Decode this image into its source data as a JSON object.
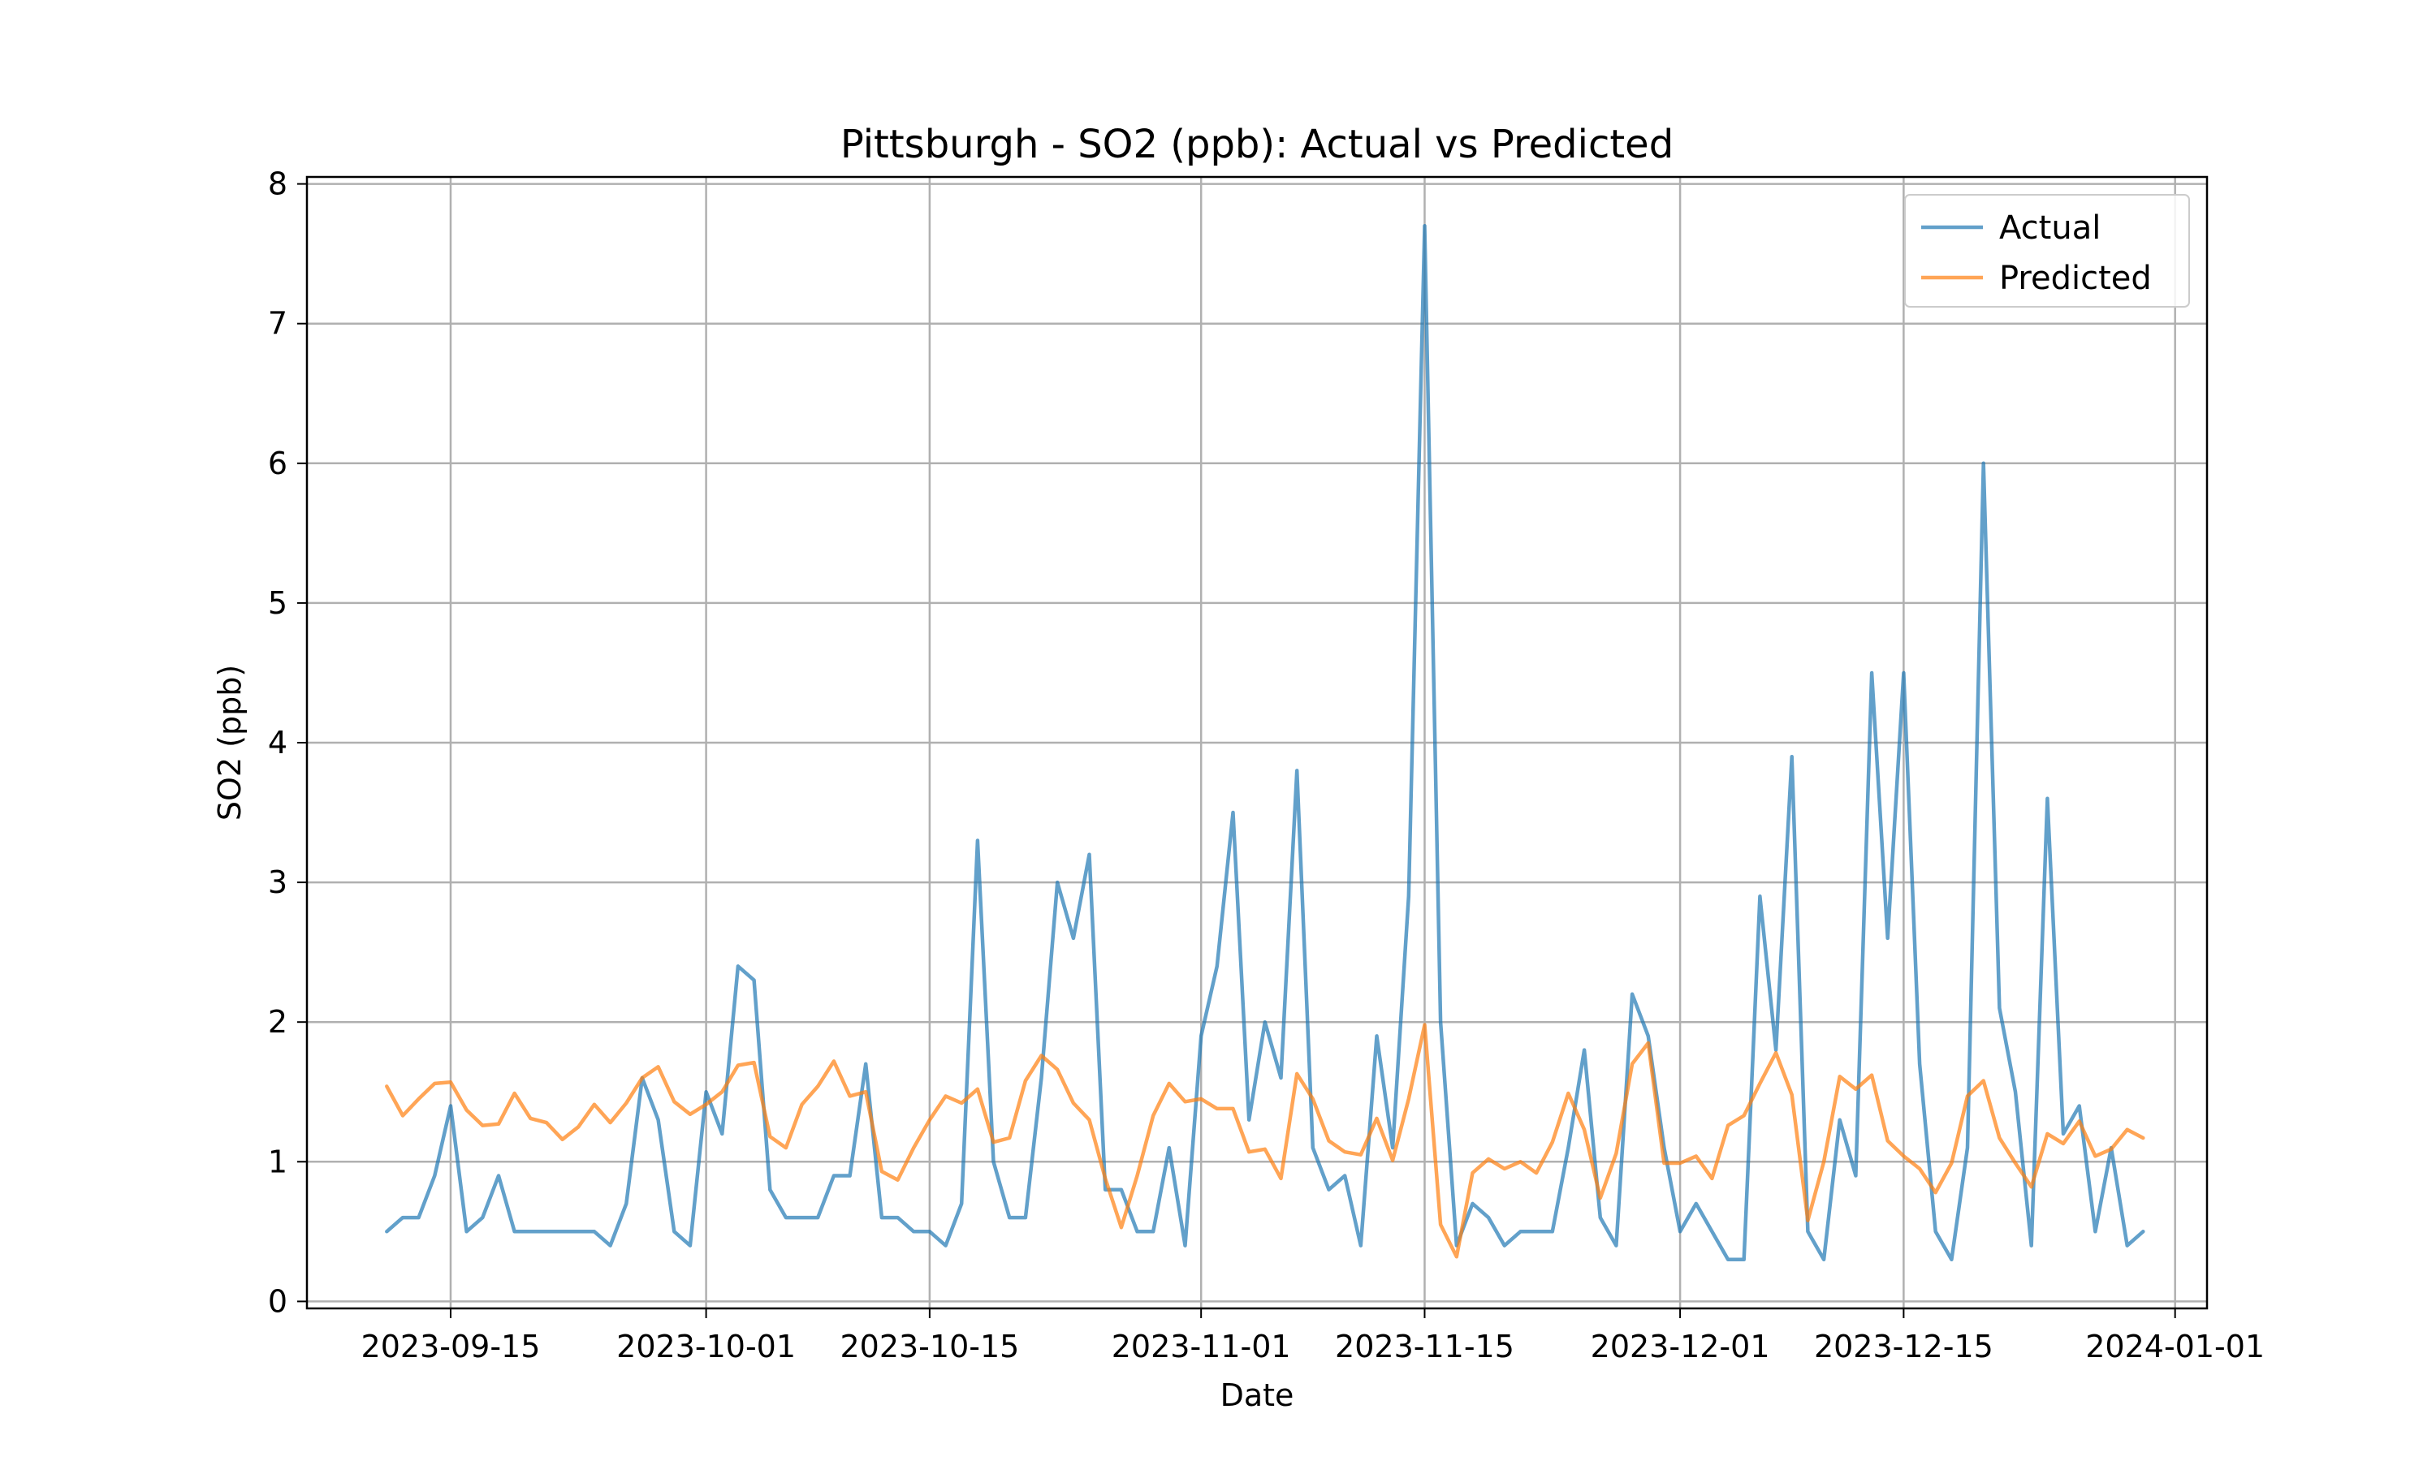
{
  "chart_data": {
    "type": "line",
    "title": "Pittsburgh - SO2 (ppb): Actual vs Predicted",
    "xlabel": "Date",
    "ylabel": "SO2 (ppb)",
    "xlim": [
      "2023-09-06",
      "2024-01-03"
    ],
    "ylim": [
      -0.05,
      8.05
    ],
    "grid": true,
    "legend_position": "top-right",
    "x_ticks": [
      "2023-09-15",
      "2023-10-01",
      "2023-10-15",
      "2023-11-01",
      "2023-11-15",
      "2023-12-01",
      "2023-12-15",
      "2024-01-01"
    ],
    "y_ticks": [
      0,
      1,
      2,
      3,
      4,
      5,
      6,
      7,
      8
    ],
    "x_start_date": "2023-09-11",
    "series": [
      {
        "name": "Actual",
        "color": "#1f77b4",
        "values": [
          0.5,
          0.6,
          0.6,
          0.9,
          1.4,
          0.5,
          0.6,
          0.9,
          0.5,
          0.5,
          0.5,
          0.5,
          0.5,
          0.5,
          0.4,
          0.7,
          1.6,
          1.3,
          0.5,
          0.4,
          1.5,
          1.2,
          2.4,
          2.3,
          0.8,
          0.6,
          0.6,
          0.6,
          0.9,
          0.9,
          1.7,
          0.6,
          0.6,
          0.5,
          0.5,
          0.4,
          0.7,
          3.3,
          1.0,
          0.6,
          0.6,
          1.6,
          3.0,
          2.6,
          3.2,
          0.8,
          0.8,
          0.5,
          0.5,
          1.1,
          0.4,
          1.9,
          2.4,
          3.5,
          1.3,
          2.0,
          1.6,
          3.8,
          1.1,
          0.8,
          0.9,
          0.4,
          1.9,
          1.1,
          2.9,
          7.7,
          2.0,
          0.4,
          0.7,
          0.6,
          0.4,
          0.5,
          0.5,
          0.5,
          1.1,
          1.8,
          0.6,
          0.4,
          2.2,
          1.9,
          1.1,
          0.5,
          0.7,
          0.5,
          0.3,
          0.3,
          2.9,
          1.8,
          3.9,
          0.5,
          0.3,
          1.3,
          0.9,
          4.5,
          2.6,
          4.5,
          1.7,
          0.5,
          0.3,
          1.1,
          6.0,
          2.1,
          1.5,
          0.4,
          3.6,
          1.2,
          1.4,
          0.5,
          1.1,
          0.4,
          0.5
        ]
      },
      {
        "name": "Predicted",
        "color": "#ff7f0e",
        "values": [
          1.54,
          1.33,
          1.45,
          1.56,
          1.57,
          1.37,
          1.26,
          1.27,
          1.49,
          1.31,
          1.28,
          1.16,
          1.25,
          1.41,
          1.28,
          1.42,
          1.6,
          1.68,
          1.43,
          1.34,
          1.41,
          1.5,
          1.69,
          1.71,
          1.18,
          1.1,
          1.41,
          1.54,
          1.72,
          1.47,
          1.5,
          0.93,
          0.87,
          1.1,
          1.3,
          1.47,
          1.42,
          1.52,
          1.14,
          1.17,
          1.58,
          1.76,
          1.66,
          1.42,
          1.3,
          0.88,
          0.53,
          0.9,
          1.33,
          1.56,
          1.43,
          1.45,
          1.38,
          1.38,
          1.07,
          1.09,
          0.88,
          1.63,
          1.45,
          1.15,
          1.07,
          1.05,
          1.31,
          1.01,
          1.45,
          1.98,
          0.55,
          0.32,
          0.92,
          1.02,
          0.95,
          1.0,
          0.92,
          1.14,
          1.49,
          1.23,
          0.74,
          1.06,
          1.7,
          1.85,
          0.99,
          0.99,
          1.04,
          0.88,
          1.26,
          1.33,
          1.56,
          1.78,
          1.48,
          0.58,
          1.0,
          1.61,
          1.52,
          1.62,
          1.15,
          1.04,
          0.95,
          0.78,
          0.99,
          1.47,
          1.58,
          1.17,
          0.99,
          0.82,
          1.2,
          1.13,
          1.29,
          1.04,
          1.09,
          1.23,
          1.17
        ]
      }
    ]
  }
}
